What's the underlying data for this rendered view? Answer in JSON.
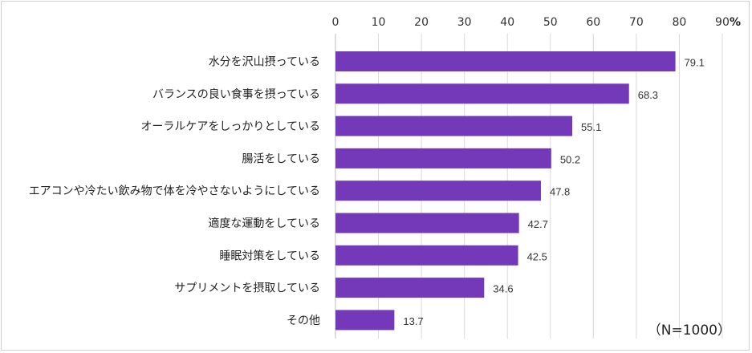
{
  "chart_data": {
    "type": "bar",
    "orientation": "horizontal",
    "categories": [
      "水分を沢山摂っている",
      "バランスの良い食事を摂っている",
      "オーラルケアをしっかりとしている",
      "腸活をしている",
      "エアコンや冷たい飲み物で体を冷やさないようにしている",
      "適度な運動をしている",
      "睡眠対策をしている",
      "サプリメントを摂取している",
      "その他"
    ],
    "values": [
      79.1,
      68.3,
      55.1,
      50.2,
      47.8,
      42.7,
      42.5,
      34.6,
      13.7
    ],
    "value_labels": [
      "79.1",
      "68.3",
      "55.1",
      "50.2",
      "47.8",
      "42.7",
      "42.5",
      "34.6",
      "13.7"
    ],
    "xlim": [
      0,
      90
    ],
    "ticks": [
      "0",
      "10",
      "20",
      "30",
      "40",
      "50",
      "60",
      "70",
      "80",
      "90"
    ],
    "tick_values": [
      0,
      10,
      20,
      30,
      40,
      50,
      60,
      70,
      80,
      90
    ],
    "unit": "%",
    "note": "（N=1000）",
    "bar_color": "#7339b8",
    "grid": true,
    "axis_position": "top"
  }
}
